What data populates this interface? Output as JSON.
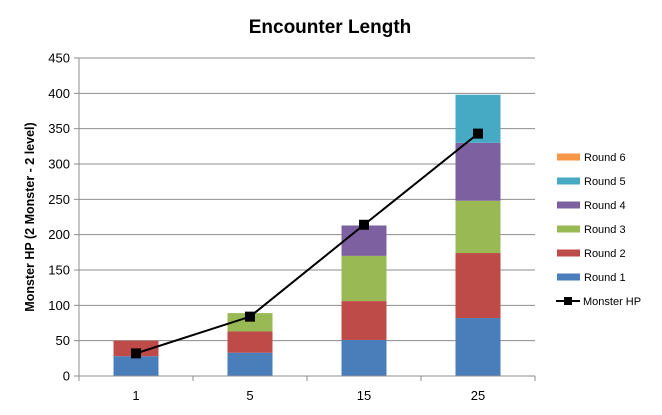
{
  "chart_data": {
    "type": "bar",
    "title": "Encounter Length",
    "ylabel": "Monster HP (2 Monster - 2 level)",
    "xlabel": "",
    "categories": [
      "1",
      "5",
      "15",
      "25"
    ],
    "ylim": [
      0,
      450
    ],
    "yticks": [
      0,
      50,
      100,
      150,
      200,
      250,
      300,
      350,
      400,
      450
    ],
    "grid": true,
    "legend_position": "right",
    "series": [
      {
        "name": "Round 1",
        "color": "#4A7EBB",
        "values": [
          28,
          33,
          51,
          82
        ]
      },
      {
        "name": "Round 2",
        "color": "#BE4B48",
        "values": [
          22,
          30,
          55,
          92
        ]
      },
      {
        "name": "Round 3",
        "color": "#98B954",
        "values": [
          0,
          26,
          64,
          74
        ]
      },
      {
        "name": "Round 4",
        "color": "#7D60A0",
        "values": [
          0,
          0,
          43,
          82
        ]
      },
      {
        "name": "Round 5",
        "color": "#46AAC5",
        "values": [
          0,
          0,
          0,
          68
        ]
      },
      {
        "name": "Round 6",
        "color": "#F79646",
        "values": [
          0,
          0,
          0,
          0
        ]
      }
    ],
    "line": {
      "name": "Monster HP",
      "color": "#000000",
      "values": [
        32,
        84,
        214,
        343
      ]
    },
    "legend": [
      "Round 6",
      "Round 5",
      "Round 4",
      "Round 3",
      "Round 2",
      "Round 1",
      "Monster HP"
    ]
  }
}
